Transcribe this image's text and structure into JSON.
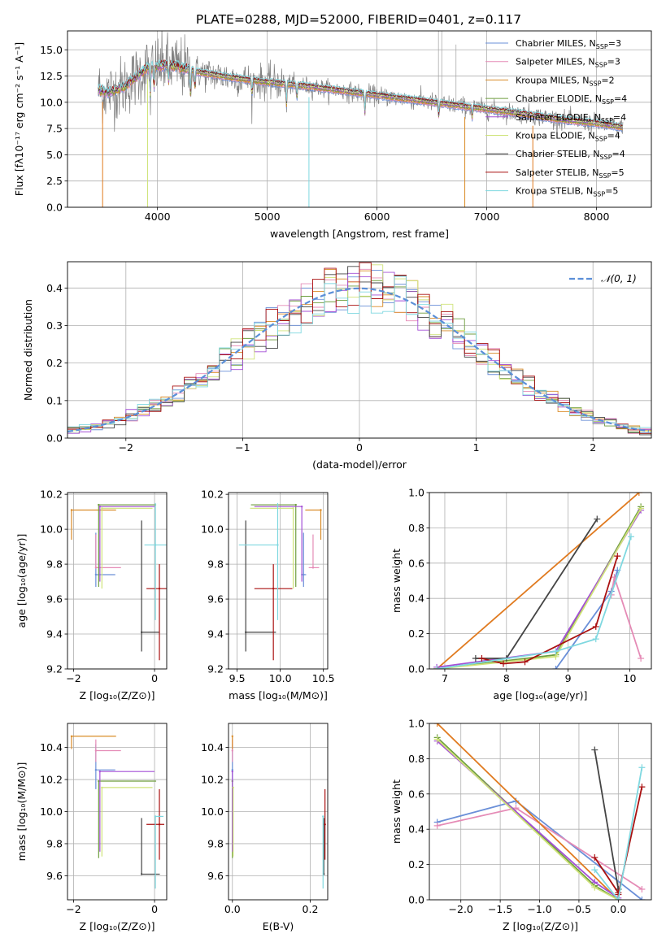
{
  "figure_title": "PLATE=0288, MJD=52000, FIBERID=0401, z=0.117",
  "colors": {
    "chabrier_miles": "#6a8fd8",
    "salpeter_miles": "#e58bb6",
    "kroupa_miles": "#d98b27",
    "chabrier_elodie": "#6f9e3f",
    "salpeter_elodie": "#a44fd6",
    "kroupa_elodie": "#cfe37a",
    "chabrier_stelib": "#444444",
    "salpeter_stelib": "#aa1111",
    "kroupa_stelib": "#7fd8e0",
    "grid": "#b0b0b0",
    "gaussian": "#5b8fd8",
    "orange": "#e07a1f"
  },
  "chart_data": [
    {
      "id": "spectrum",
      "type": "line",
      "xlabel": "wavelength [Angstrom, rest frame]",
      "ylabel": "Flux [fλ10⁻¹⁷ erg cm⁻² s⁻¹ A⁻¹]",
      "xlim": [
        3180,
        8500
      ],
      "ylim": [
        0,
        16.8
      ],
      "xticks": [
        4000,
        5000,
        6000,
        7000,
        8000
      ],
      "yticks": [
        0.0,
        2.5,
        5.0,
        7.5,
        10.0,
        12.5,
        15.0
      ],
      "legend_position": "upper-right",
      "data_trend": {
        "x": [
          3450,
          3550,
          3700,
          3900,
          4100,
          4400,
          4700,
          5000,
          5300,
          5600,
          5900,
          6200,
          6500,
          6800,
          7100,
          7400,
          7700,
          8000,
          8240
        ],
        "y": [
          11.2,
          10.9,
          11.5,
          13.2,
          13.6,
          12.8,
          12.3,
          11.9,
          11.6,
          11.2,
          10.8,
          10.4,
          10.0,
          9.6,
          9.2,
          8.8,
          8.3,
          8.0,
          7.6
        ]
      },
      "legend": [
        {
          "label": "Chabrier MILES, N",
          "sub": "SSP",
          "n": "=3",
          "color": "#6a8fd8"
        },
        {
          "label": "Salpeter MILES, N",
          "sub": "SSP",
          "n": "=3",
          "color": "#e58bb6"
        },
        {
          "label": "Kroupa MILES, N",
          "sub": "SSP",
          "n": "=2",
          "color": "#d98b27"
        },
        {
          "label": "Chabrier ELODIE, N",
          "sub": "SSP",
          "n": "=4",
          "color": "#6f9e3f"
        },
        {
          "label": "Salpeter ELODIE, N",
          "sub": "SSP",
          "n": "=4",
          "color": "#a44fd6"
        },
        {
          "label": "Kroupa ELODIE, N",
          "sub": "SSP",
          "n": "=4",
          "color": "#cfe37a"
        },
        {
          "label": "Chabrier STELIB, N",
          "sub": "SSP",
          "n": "=4",
          "color": "#444444"
        },
        {
          "label": "Salpeter STELIB, N",
          "sub": "SSP",
          "n": "=5",
          "color": "#aa1111"
        },
        {
          "label": "Kroupa STELIB, N",
          "sub": "SSP",
          "n": "=5",
          "color": "#7fd8e0"
        }
      ]
    },
    {
      "id": "residuals",
      "type": "line",
      "xlabel": "(data-model)/error",
      "ylabel": "Normed distribution",
      "xlim": [
        -2.5,
        2.5
      ],
      "ylim": [
        0,
        0.47
      ],
      "xticks": [
        -2,
        -1,
        0,
        1,
        2
      ],
      "yticks": [
        0.0,
        0.1,
        0.2,
        0.3,
        0.4
      ],
      "legend": [
        {
          "label": "𝒩(0, 1)",
          "color": "#5b8fd8",
          "style": "dashed"
        }
      ],
      "legend_position": "upper-right",
      "bin_width": 0.1
    },
    {
      "id": "age_vs_Z",
      "type": "scatter",
      "xlabel": "Z [log₁₀(Z/Z⊙)]",
      "ylabel": "age  [log₁₀(age/yr)]",
      "xlim": [
        -2.15,
        0.3
      ],
      "ylim": [
        9.2,
        10.21
      ],
      "xticks": [
        -2,
        0
      ],
      "yticks": [
        9.2,
        9.4,
        9.6,
        9.8,
        10.0,
        10.2
      ],
      "points": [
        {
          "x": -1.45,
          "y": 9.74,
          "xerr": [
            0.0,
            0.48
          ],
          "yerr": [
            0.07,
            0.24
          ],
          "color": "#6a8fd8"
        },
        {
          "x": -1.45,
          "y": 9.78,
          "xerr": [
            0.0,
            0.62
          ],
          "yerr": [
            0.0,
            0.19
          ],
          "color": "#e58bb6"
        },
        {
          "x": -2.05,
          "y": 10.11,
          "xerr": [
            0.0,
            1.1
          ],
          "yerr": [
            0.17,
            0.0
          ],
          "color": "#d98b27"
        },
        {
          "x": -1.38,
          "y": 10.14,
          "xerr": [
            0.0,
            1.42
          ],
          "yerr": [
            0.47,
            0.0
          ],
          "color": "#6f9e3f"
        },
        {
          "x": -1.35,
          "y": 10.13,
          "xerr": [
            0.0,
            1.35
          ],
          "yerr": [
            0.43,
            0.0
          ],
          "color": "#a44fd6"
        },
        {
          "x": -1.3,
          "y": 10.12,
          "xerr": [
            0.0,
            1.25
          ],
          "yerr": [
            0.46,
            0.0
          ],
          "color": "#cfe37a"
        },
        {
          "x": -0.32,
          "y": 9.41,
          "xerr": [
            0.0,
            0.45
          ],
          "yerr": [
            0.11,
            0.64
          ],
          "color": "#444444"
        },
        {
          "x": 0.12,
          "y": 9.66,
          "xerr": [
            0.32,
            0.32
          ],
          "yerr": [
            0.41,
            0.14
          ],
          "color": "#aa1111"
        },
        {
          "x": 0.02,
          "y": 9.91,
          "xerr": [
            0.27,
            0.27
          ],
          "yerr": [
            0.43,
            0.24
          ],
          "color": "#7fd8e0"
        }
      ]
    },
    {
      "id": "age_vs_mass",
      "type": "scatter",
      "xlabel": "mass [log₁₀(M/M⊙)]",
      "ylabel": "",
      "xlim": [
        9.4,
        10.55
      ],
      "ylim": [
        9.2,
        10.21
      ],
      "xticks": [
        9.5,
        10.0,
        10.5
      ],
      "yticks": [
        9.2,
        9.4,
        9.6,
        9.8,
        10.0,
        10.2
      ],
      "points": [
        {
          "x": 10.27,
          "y": 9.74,
          "xerr": [
            0.03,
            0.03
          ],
          "yerr": [
            0.07,
            0.24
          ],
          "color": "#6a8fd8"
        },
        {
          "x": 10.38,
          "y": 9.78,
          "xerr": [
            0.05,
            0.07
          ],
          "yerr": [
            0.0,
            0.19
          ],
          "color": "#e58bb6"
        },
        {
          "x": 10.47,
          "y": 10.11,
          "xerr": [
            0.18,
            0.0
          ],
          "yerr": [
            0.17,
            0.0
          ],
          "color": "#d98b27"
        },
        {
          "x": 10.18,
          "y": 10.14,
          "xerr": [
            0.52,
            0.0
          ],
          "yerr": [
            0.47,
            0.0
          ],
          "color": "#6f9e3f"
        },
        {
          "x": 10.25,
          "y": 10.13,
          "xerr": [
            0.55,
            0.0
          ],
          "yerr": [
            0.43,
            0.0
          ],
          "color": "#a44fd6"
        },
        {
          "x": 10.15,
          "y": 10.12,
          "xerr": [
            0.5,
            0.0
          ],
          "yerr": [
            0.46,
            0.0
          ],
          "color": "#cfe37a"
        },
        {
          "x": 9.6,
          "y": 9.41,
          "xerr": [
            0.0,
            0.35
          ],
          "yerr": [
            0.11,
            0.64
          ],
          "color": "#444444"
        },
        {
          "x": 9.92,
          "y": 9.66,
          "xerr": [
            0.22,
            0.22
          ],
          "yerr": [
            0.41,
            0.14
          ],
          "color": "#aa1111"
        },
        {
          "x": 9.97,
          "y": 9.91,
          "xerr": [
            0.45,
            0.0
          ],
          "yerr": [
            0.43,
            0.24
          ],
          "color": "#7fd8e0"
        }
      ]
    },
    {
      "id": "weight_vs_age",
      "type": "line",
      "xlabel": "age  [log₁₀(age/yr)]",
      "ylabel": "mass weight",
      "xlim": [
        6.75,
        10.35
      ],
      "ylim": [
        0,
        1.0
      ],
      "xticks": [
        7,
        8,
        9,
        10
      ],
      "yticks": [
        0.0,
        0.2,
        0.4,
        0.6,
        0.8,
        1.0
      ],
      "series": [
        {
          "x": [
            8.8,
            9.7,
            9.8
          ],
          "y": [
            0.0,
            0.44,
            0.56
          ],
          "color": "#6a8fd8"
        },
        {
          "x": [
            9.7,
            9.75,
            10.18
          ],
          "y": [
            0.42,
            0.52,
            0.06
          ],
          "color": "#e58bb6"
        },
        {
          "x": [
            6.87,
            10.15
          ],
          "y": [
            0.0,
            1.0
          ],
          "color": "#e07a1f"
        },
        {
          "x": [
            6.87,
            8.8,
            10.18
          ],
          "y": [
            0.0,
            0.08,
            0.92
          ],
          "color": "#6f9e3f"
        },
        {
          "x": [
            6.87,
            8.8,
            10.18
          ],
          "y": [
            0.01,
            0.1,
            0.9
          ],
          "color": "#a44fd6"
        },
        {
          "x": [
            6.87,
            8.8,
            10.18
          ],
          "y": [
            0.0,
            0.07,
            0.91
          ],
          "color": "#cfe37a"
        },
        {
          "x": [
            7.5,
            8.0,
            9.47
          ],
          "y": [
            0.06,
            0.06,
            0.85
          ],
          "color": "#444444"
        },
        {
          "x": [
            7.6,
            7.95,
            8.3,
            9.45,
            9.8
          ],
          "y": [
            0.06,
            0.03,
            0.04,
            0.24,
            0.64
          ],
          "color": "#aa1111"
        },
        {
          "x": [
            6.87,
            8.8,
            9.45,
            10.02
          ],
          "y": [
            0.0,
            0.1,
            0.17,
            0.75
          ],
          "color": "#7fd8e0"
        }
      ]
    },
    {
      "id": "mass_vs_Z",
      "type": "scatter",
      "xlabel": "Z [log₁₀(Z/Z⊙)]",
      "ylabel": "mass [log₁₀(M/M⊙)]",
      "xlim": [
        -2.15,
        0.3
      ],
      "ylim": [
        9.45,
        10.55
      ],
      "xticks": [
        -2,
        0
      ],
      "yticks": [
        9.6,
        9.8,
        10.0,
        10.2,
        10.4
      ],
      "points": [
        {
          "x": -1.45,
          "y": 10.26,
          "xerr": [
            0.0,
            0.48
          ],
          "yerr": [
            0.12,
            0.16
          ],
          "color": "#6a8fd8"
        },
        {
          "x": -1.45,
          "y": 10.38,
          "xerr": [
            0.0,
            0.62
          ],
          "yerr": [
            0.07,
            0.07
          ],
          "color": "#e58bb6"
        },
        {
          "x": -2.05,
          "y": 10.47,
          "xerr": [
            0.0,
            1.1
          ],
          "yerr": [
            0.08,
            0.0
          ],
          "color": "#d98b27"
        },
        {
          "x": -1.38,
          "y": 10.19,
          "xerr": [
            0.0,
            1.42
          ],
          "yerr": [
            0.48,
            0.0
          ],
          "color": "#6f9e3f"
        },
        {
          "x": -1.35,
          "y": 10.25,
          "xerr": [
            0.0,
            1.35
          ],
          "yerr": [
            0.5,
            0.0
          ],
          "color": "#a44fd6"
        },
        {
          "x": -1.3,
          "y": 10.15,
          "xerr": [
            0.0,
            1.25
          ],
          "yerr": [
            0.43,
            0.0
          ],
          "color": "#cfe37a"
        },
        {
          "x": -0.32,
          "y": 9.61,
          "xerr": [
            0.0,
            0.45
          ],
          "yerr": [
            0.0,
            0.35
          ],
          "color": "#444444"
        },
        {
          "x": 0.12,
          "y": 9.92,
          "xerr": [
            0.32,
            0.12
          ],
          "yerr": [
            0.22,
            0.22
          ],
          "color": "#aa1111"
        },
        {
          "x": 0.02,
          "y": 9.97,
          "xerr": [
            0.0,
            0.2
          ],
          "yerr": [
            0.45,
            0.0
          ],
          "color": "#7fd8e0"
        }
      ]
    },
    {
      "id": "mass_vs_ebv",
      "type": "scatter",
      "xlabel": "E(B-V)",
      "ylabel": "",
      "xlim": [
        -0.01,
        0.245
      ],
      "ylim": [
        9.45,
        10.55
      ],
      "xticks": [
        0.0,
        0.2
      ],
      "yticks": [
        9.6,
        9.8,
        10.0,
        10.2,
        10.4
      ],
      "points": [
        {
          "x": 0.0,
          "y": 10.26,
          "yerr": [
            0.12,
            0.16
          ],
          "color": "#6a8fd8"
        },
        {
          "x": 0.0,
          "y": 10.38,
          "yerr": [
            0.07,
            0.07
          ],
          "color": "#e58bb6"
        },
        {
          "x": 0.0,
          "y": 10.47,
          "yerr": [
            0.08,
            0.0
          ],
          "color": "#d98b27"
        },
        {
          "x": 0.0,
          "y": 10.19,
          "yerr": [
            0.48,
            0.0
          ],
          "color": "#6f9e3f"
        },
        {
          "x": 0.0,
          "y": 10.25,
          "yerr": [
            0.5,
            0.0
          ],
          "color": "#a44fd6"
        },
        {
          "x": 0.002,
          "y": 10.15,
          "yerr": [
            0.43,
            0.0
          ],
          "color": "#cfe37a"
        },
        {
          "x": 0.235,
          "y": 9.61,
          "yerr": [
            0.0,
            0.35
          ],
          "color": "#444444"
        },
        {
          "x": 0.238,
          "y": 9.92,
          "yerr": [
            0.22,
            0.22
          ],
          "color": "#aa1111"
        },
        {
          "x": 0.233,
          "y": 9.97,
          "yerr": [
            0.45,
            0.0
          ],
          "color": "#7fd8e0"
        }
      ]
    },
    {
      "id": "weight_vs_Z",
      "type": "line",
      "xlabel": "Z [log₁₀(Z/Z⊙)]",
      "ylabel": "mass weight",
      "xlim": [
        -2.4,
        0.42
      ],
      "ylim": [
        0,
        1.0
      ],
      "xticks": [
        -2.0,
        -1.5,
        -1.0,
        -0.5,
        0.0
      ],
      "yticks": [
        0.0,
        0.2,
        0.4,
        0.6,
        0.8,
        1.0
      ],
      "series": [
        {
          "x": [
            -2.3,
            -1.3,
            0.3
          ],
          "y": [
            0.44,
            0.56,
            0.0
          ],
          "color": "#6a8fd8"
        },
        {
          "x": [
            -2.3,
            -1.3,
            0.3
          ],
          "y": [
            0.42,
            0.52,
            0.06
          ],
          "color": "#e58bb6"
        },
        {
          "x": [
            -2.3,
            0.0
          ],
          "y": [
            1.0,
            0.0
          ],
          "color": "#e07a1f"
        },
        {
          "x": [
            -2.3,
            -0.3,
            0.0
          ],
          "y": [
            0.92,
            0.08,
            0.0
          ],
          "color": "#6f9e3f"
        },
        {
          "x": [
            -2.3,
            -0.3,
            0.0
          ],
          "y": [
            0.9,
            0.1,
            0.01
          ],
          "color": "#a44fd6"
        },
        {
          "x": [
            -2.3,
            -0.3,
            0.0
          ],
          "y": [
            0.91,
            0.07,
            0.0
          ],
          "color": "#cfe37a"
        },
        {
          "x": [
            -0.3,
            0.0,
            0.0
          ],
          "y": [
            0.85,
            0.06,
            0.06
          ],
          "color": "#444444"
        },
        {
          "x": [
            -0.3,
            0.0,
            0.0,
            0.3
          ],
          "y": [
            0.24,
            0.04,
            0.03,
            0.64
          ],
          "color": "#aa1111"
        },
        {
          "x": [
            -0.3,
            0.0,
            0.3
          ],
          "y": [
            0.17,
            0.0,
            0.75
          ],
          "color": "#7fd8e0"
        }
      ]
    }
  ]
}
